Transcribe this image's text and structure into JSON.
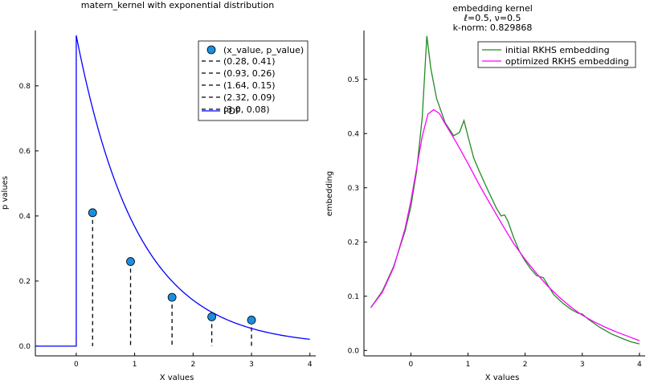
{
  "chart_data": [
    {
      "type": "scatter",
      "title": "matern_kernel with exponential distribution",
      "xlabel": "X values",
      "ylabel": "p values",
      "xlim": [
        -0.7,
        4.1
      ],
      "ylim": [
        -0.03,
        0.97
      ],
      "xticks": [
        0,
        1,
        2,
        3,
        4
      ],
      "yticks": [
        0.0,
        0.2,
        0.4,
        0.6,
        0.8
      ],
      "xtick_labels": [
        "0",
        "1",
        "2",
        "3",
        "4"
      ],
      "ytick_labels": [
        "0.0",
        "0.2",
        "0.4",
        "0.6",
        "0.8"
      ],
      "legend_position": "top-right",
      "points_legend": "(x_value, p_value)",
      "points": [
        {
          "x": 0.28,
          "y": 0.41,
          "label": "(0.28, 0.41)"
        },
        {
          "x": 0.93,
          "y": 0.26,
          "label": "(0.93, 0.26)"
        },
        {
          "x": 1.64,
          "y": 0.15,
          "label": "(1.64, 0.15)"
        },
        {
          "x": 2.32,
          "y": 0.09,
          "label": "(2.32, 0.09)"
        },
        {
          "x": 3.0,
          "y": 0.08,
          "label": "(3.0, 0.08)"
        }
      ],
      "pdf_legend": "PDF",
      "pdf_rate": 0.955,
      "pdf_range": [
        -0.7,
        4.0
      ],
      "colors": {
        "points": "#1a8fe0",
        "stems": "#000000",
        "pdf": "#0000ff"
      }
    },
    {
      "type": "line",
      "title_lines": [
        "embedding kernel",
        "ℓ=0.5, ν=0.5",
        "k-norm: 0.829868"
      ],
      "xlabel": "X values",
      "ylabel": "embedding",
      "xlim": [
        -0.82,
        4.1
      ],
      "ylim": [
        -0.01,
        0.59
      ],
      "xticks": [
        0,
        1,
        2,
        3,
        4
      ],
      "yticks": [
        0.0,
        0.1,
        0.2,
        0.3,
        0.4,
        0.5
      ],
      "xtick_labels": [
        "0",
        "1",
        "2",
        "3",
        "4"
      ],
      "ytick_labels": [
        "0.0",
        "0.1",
        "0.2",
        "0.3",
        "0.4",
        "0.5"
      ],
      "legend_position": "top-right",
      "series": [
        {
          "name": "initial RKHS embedding",
          "color": "#228b22",
          "points": [
            [
              -0.7,
              0.079
            ],
            [
              -0.5,
              0.109
            ],
            [
              -0.3,
              0.155
            ],
            [
              -0.1,
              0.22
            ],
            [
              0.0,
              0.265
            ],
            [
              0.1,
              0.33
            ],
            [
              0.2,
              0.43
            ],
            [
              0.28,
              0.58
            ],
            [
              0.35,
              0.52
            ],
            [
              0.45,
              0.465
            ],
            [
              0.6,
              0.42
            ],
            [
              0.75,
              0.396
            ],
            [
              0.85,
              0.402
            ],
            [
              0.93,
              0.424
            ],
            [
              1.0,
              0.395
            ],
            [
              1.1,
              0.355
            ],
            [
              1.2,
              0.33
            ],
            [
              1.35,
              0.295
            ],
            [
              1.5,
              0.262
            ],
            [
              1.58,
              0.248
            ],
            [
              1.64,
              0.25
            ],
            [
              1.7,
              0.238
            ],
            [
              1.8,
              0.208
            ],
            [
              1.9,
              0.183
            ],
            [
              2.0,
              0.165
            ],
            [
              2.1,
              0.15
            ],
            [
              2.2,
              0.138
            ],
            [
              2.32,
              0.134
            ],
            [
              2.4,
              0.12
            ],
            [
              2.5,
              0.103
            ],
            [
              2.65,
              0.088
            ],
            [
              2.8,
              0.076
            ],
            [
              2.92,
              0.069
            ],
            [
              3.0,
              0.067
            ],
            [
              3.1,
              0.058
            ],
            [
              3.3,
              0.043
            ],
            [
              3.5,
              0.031
            ],
            [
              3.7,
              0.022
            ],
            [
              3.85,
              0.016
            ],
            [
              4.0,
              0.012
            ]
          ]
        },
        {
          "name": "optimized RKHS embedding",
          "color": "#ff00ff",
          "points": [
            [
              -0.7,
              0.079
            ],
            [
              -0.5,
              0.107
            ],
            [
              -0.3,
              0.153
            ],
            [
              -0.1,
              0.225
            ],
            [
              0.0,
              0.275
            ],
            [
              0.1,
              0.335
            ],
            [
              0.2,
              0.395
            ],
            [
              0.3,
              0.436
            ],
            [
              0.4,
              0.444
            ],
            [
              0.5,
              0.437
            ],
            [
              0.6,
              0.418
            ],
            [
              0.8,
              0.383
            ],
            [
              1.0,
              0.345
            ],
            [
              1.2,
              0.305
            ],
            [
              1.4,
              0.268
            ],
            [
              1.6,
              0.232
            ],
            [
              1.8,
              0.197
            ],
            [
              2.0,
              0.168
            ],
            [
              2.2,
              0.142
            ],
            [
              2.4,
              0.118
            ],
            [
              2.6,
              0.098
            ],
            [
              2.8,
              0.08
            ],
            [
              3.0,
              0.065
            ],
            [
              3.2,
              0.053
            ],
            [
              3.4,
              0.043
            ],
            [
              3.6,
              0.034
            ],
            [
              3.8,
              0.026
            ],
            [
              4.0,
              0.018
            ]
          ]
        }
      ]
    }
  ]
}
